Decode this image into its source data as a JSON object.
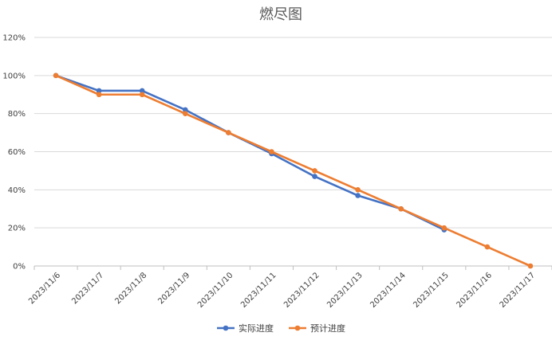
{
  "chart_data": {
    "type": "line",
    "title": "燃尽图",
    "xlabel": "",
    "ylabel": "",
    "categories": [
      "2023/11/6",
      "2023/11/7",
      "2023/11/8",
      "2023/11/9",
      "2023/11/10",
      "2023/11/11",
      "2023/11/12",
      "2023/11/13",
      "2023/11/14",
      "2023/11/15",
      "2023/11/16",
      "2023/11/17"
    ],
    "y_ticks": [
      "0%",
      "20%",
      "40%",
      "60%",
      "80%",
      "100%",
      "120%"
    ],
    "ylim": [
      0,
      120
    ],
    "grid": true,
    "legend_position": "bottom",
    "series": [
      {
        "name": "实际进度",
        "color": "#4472C4",
        "values": [
          100,
          92,
          92,
          82,
          70,
          59,
          47,
          37,
          30,
          19,
          null,
          null
        ]
      },
      {
        "name": "预计进度",
        "color": "#ED7D31",
        "values": [
          100,
          90,
          90,
          80,
          70,
          60,
          50,
          40,
          30,
          20,
          10,
          0
        ]
      }
    ]
  }
}
